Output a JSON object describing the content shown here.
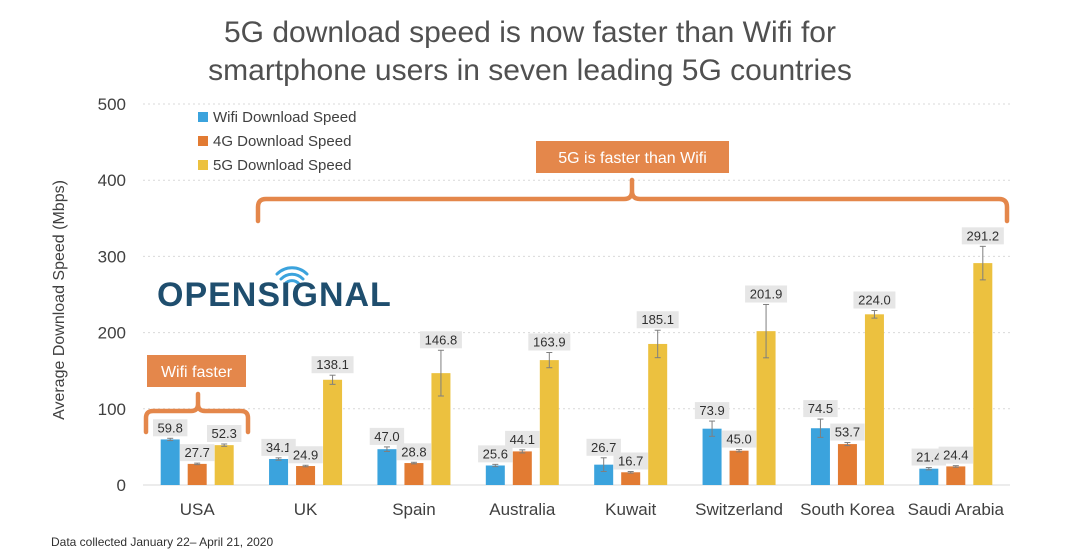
{
  "chart_data": {
    "type": "bar",
    "title": "5G download speed is now faster than Wifi for smartphone users in seven leading 5G countries",
    "title_lines": [
      "5G download speed is now faster than Wifi for",
      "smartphone users in seven leading 5G countries"
    ],
    "ylabel": "Average Download Speed (Mbps)",
    "xlabel": "",
    "ylim": [
      0,
      500
    ],
    "yticks": [
      0,
      100,
      200,
      300,
      400,
      500
    ],
    "grid": true,
    "legend_position": "top-left",
    "categories": [
      "USA",
      "UK",
      "Spain",
      "Australia",
      "Kuwait",
      "Switzerland",
      "South Korea",
      "Saudi Arabia"
    ],
    "series": [
      {
        "name": "Wifi Download Speed",
        "color": "#3ba3dd",
        "values": [
          59.8,
          34.1,
          47.0,
          25.6,
          26.7,
          73.9,
          74.5,
          21.4
        ],
        "labels": [
          "59.8",
          "34.1",
          "47.0",
          "25.6",
          "26.7",
          "73.9",
          "74.5",
          "21.4"
        ],
        "err": [
          1.5,
          1.5,
          3,
          1.5,
          9,
          10,
          12,
          1.5
        ]
      },
      {
        "name": "4G Download Speed",
        "color": "#e27b33",
        "values": [
          27.7,
          24.9,
          28.8,
          44.1,
          16.7,
          45.0,
          53.7,
          24.4
        ],
        "labels": [
          "27.7",
          "24.9",
          "28.8",
          "44.1",
          "16.7",
          "45.0",
          "53.7",
          "24.4"
        ],
        "err": [
          1,
          1,
          1,
          2,
          1,
          1.5,
          2,
          1
        ]
      },
      {
        "name": "5G Download Speed",
        "color": "#ecc13f",
        "values": [
          52.3,
          138.1,
          146.8,
          163.9,
          185.1,
          201.9,
          224.0,
          291.2
        ],
        "labels": [
          "52.3",
          "138.1",
          "146.8",
          "163.9",
          "185.1",
          "201.9",
          "224.0",
          "291.2"
        ],
        "err": [
          1.5,
          6,
          30,
          10,
          18,
          35,
          5,
          22
        ]
      }
    ],
    "annotations": {
      "wifi_faster": "Wifi faster",
      "g5_faster": "5G is faster than Wifi",
      "callout_color": "#e4874b"
    },
    "footnote": "Data collected January 22– April 21, 2020"
  },
  "logo": {
    "text_before": "OPENS",
    "text_i": "I",
    "text_after": "GNAL",
    "color": "#1f4e6e",
    "accent_color": "#3ba3dd"
  }
}
